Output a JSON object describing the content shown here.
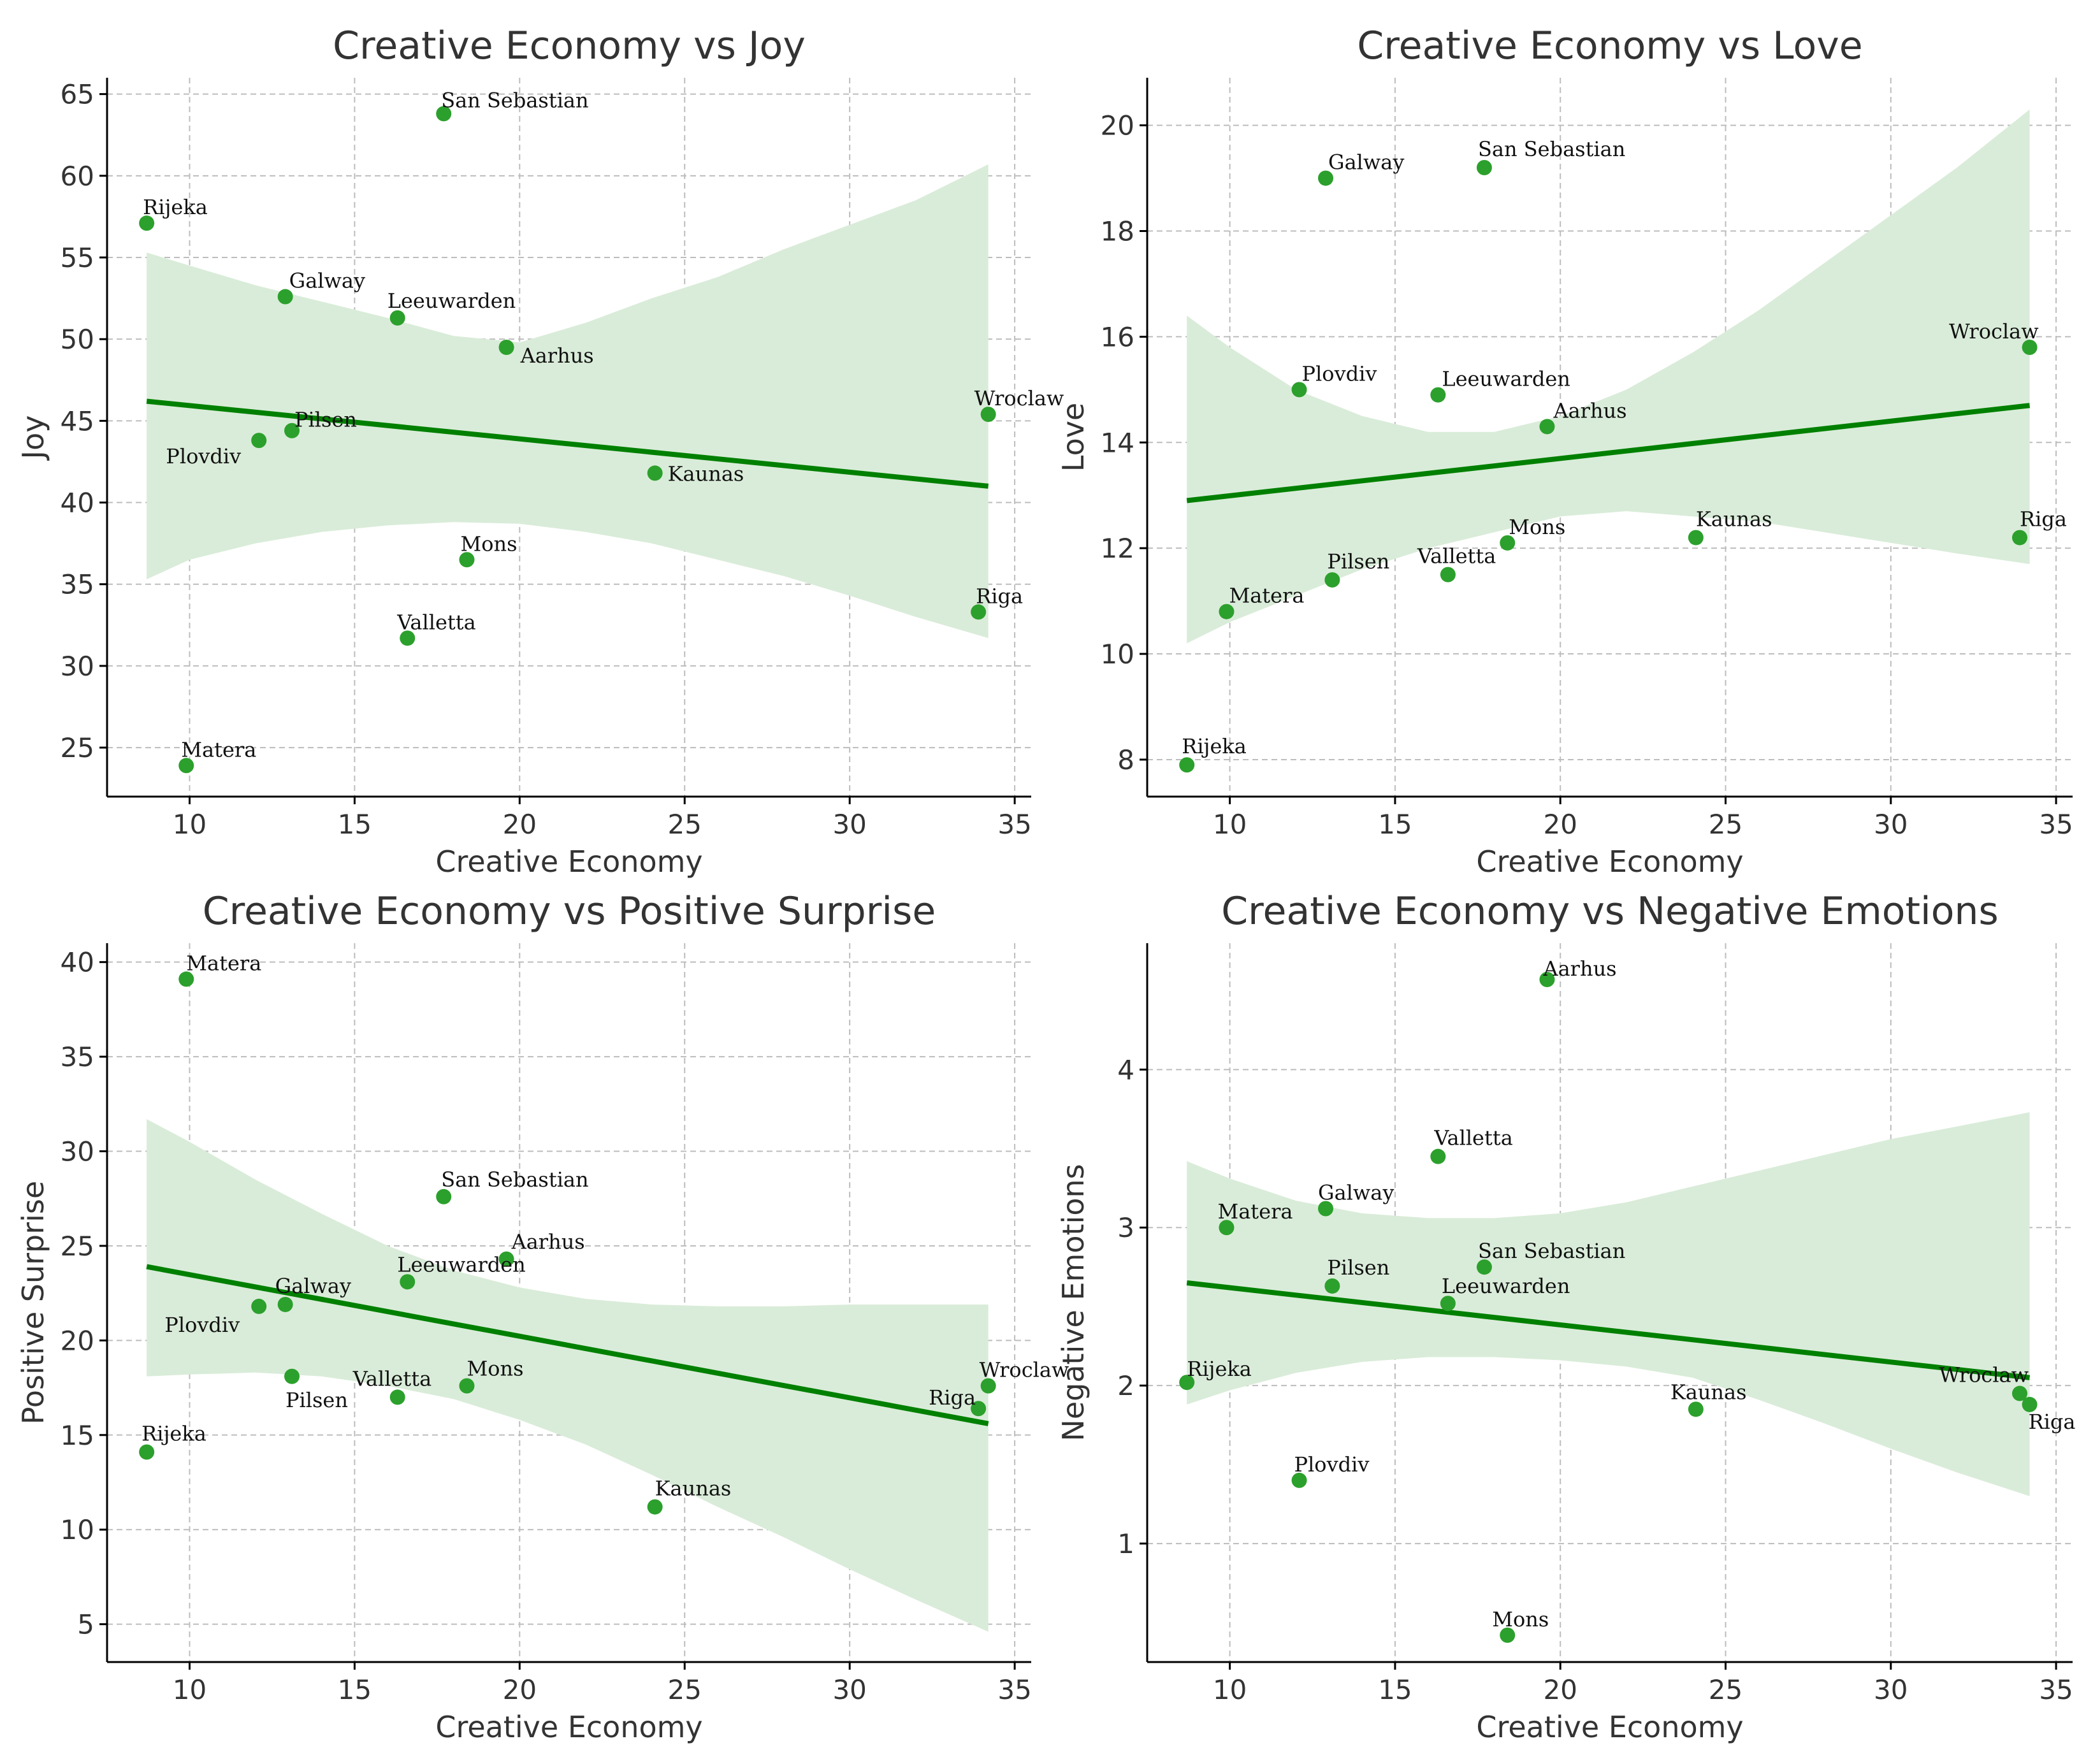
{
  "chart_data": [
    {
      "type": "scatter",
      "title": "Creative Economy vs Joy",
      "xlabel": "Creative Economy",
      "ylabel": "Joy",
      "xlim": [
        7.5,
        35.5
      ],
      "ylim": [
        22,
        66
      ],
      "xticks": [
        10,
        15,
        20,
        25,
        30,
        35
      ],
      "yticks": [
        25,
        30,
        35,
        40,
        45,
        50,
        55,
        60,
        65
      ],
      "grid": true,
      "color": "#2ca02c",
      "line_color": "#008000",
      "band_color": "#d9ecd9",
      "points": [
        {
          "name": "Rijeka",
          "x": 8.7,
          "y": 57.1
        },
        {
          "name": "Matera",
          "x": 9.9,
          "y": 23.9
        },
        {
          "name": "Plovdiv",
          "x": 12.1,
          "y": 43.8
        },
        {
          "name": "Galway",
          "x": 12.9,
          "y": 52.6
        },
        {
          "name": "Pilsen",
          "x": 13.1,
          "y": 44.4
        },
        {
          "name": "Leeuwarden",
          "x": 16.3,
          "y": 51.3
        },
        {
          "name": "Valletta",
          "x": 16.6,
          "y": 31.7
        },
        {
          "name": "San Sebastian",
          "x": 17.7,
          "y": 63.8
        },
        {
          "name": "Mons",
          "x": 18.4,
          "y": 36.5
        },
        {
          "name": "Aarhus",
          "x": 19.6,
          "y": 49.5
        },
        {
          "name": "Kaunas",
          "x": 24.1,
          "y": 41.8
        },
        {
          "name": "Riga",
          "x": 33.9,
          "y": 33.3
        },
        {
          "name": "Wroclaw",
          "x": 34.2,
          "y": 45.4
        }
      ],
      "fit": {
        "x": [
          8.7,
          34.2
        ],
        "y": [
          46.2,
          41.0
        ]
      },
      "ci": {
        "x": [
          8.7,
          10,
          12,
          14,
          16,
          18,
          20,
          22,
          24,
          26,
          28,
          30,
          32,
          34.2
        ],
        "upper": [
          55.3,
          54.5,
          53.3,
          52.3,
          51.3,
          50.2,
          49.8,
          51.0,
          52.5,
          53.8,
          55.5,
          57.0,
          58.5,
          60.7
        ],
        "lower": [
          35.3,
          36.5,
          37.5,
          38.2,
          38.6,
          38.8,
          38.7,
          38.2,
          37.5,
          36.5,
          35.5,
          34.3,
          33.0,
          31.7
        ]
      }
    },
    {
      "type": "scatter",
      "title": "Creative Economy vs Love",
      "xlabel": "Creative Economy",
      "ylabel": "Love",
      "xlim": [
        7.5,
        35.5
      ],
      "ylim": [
        7.3,
        20.9
      ],
      "xticks": [
        10,
        15,
        20,
        25,
        30,
        35
      ],
      "yticks": [
        8,
        10,
        12,
        14,
        16,
        18,
        20
      ],
      "grid": true,
      "color": "#2ca02c",
      "line_color": "#008000",
      "band_color": "#d9ecd9",
      "points": [
        {
          "name": "Rijeka",
          "x": 8.7,
          "y": 7.9
        },
        {
          "name": "Matera",
          "x": 9.9,
          "y": 10.8
        },
        {
          "name": "Plovdiv",
          "x": 12.1,
          "y": 15.0
        },
        {
          "name": "Galway",
          "x": 12.9,
          "y": 19.0
        },
        {
          "name": "Pilsen",
          "x": 13.1,
          "y": 11.4
        },
        {
          "name": "Leeuwarden",
          "x": 16.3,
          "y": 14.9
        },
        {
          "name": "Valletta",
          "x": 16.6,
          "y": 11.5
        },
        {
          "name": "San Sebastian",
          "x": 17.7,
          "y": 19.2
        },
        {
          "name": "Mons",
          "x": 18.4,
          "y": 12.1
        },
        {
          "name": "Aarhus",
          "x": 19.6,
          "y": 14.3
        },
        {
          "name": "Kaunas",
          "x": 24.1,
          "y": 12.2
        },
        {
          "name": "Riga",
          "x": 33.9,
          "y": 12.2
        },
        {
          "name": "Wroclaw",
          "x": 34.2,
          "y": 15.8
        }
      ],
      "fit": {
        "x": [
          8.7,
          34.2
        ],
        "y": [
          12.9,
          14.7
        ]
      },
      "ci": {
        "x": [
          8.7,
          10,
          12,
          14,
          16,
          18,
          20,
          22,
          24,
          26,
          28,
          30,
          32,
          34.2
        ],
        "upper": [
          16.4,
          15.8,
          15.0,
          14.5,
          14.2,
          14.2,
          14.5,
          15.0,
          15.7,
          16.5,
          17.4,
          18.3,
          19.2,
          20.3
        ],
        "lower": [
          10.2,
          10.6,
          11.1,
          11.6,
          12.0,
          12.3,
          12.6,
          12.7,
          12.6,
          12.5,
          12.3,
          12.1,
          11.9,
          11.7
        ]
      }
    },
    {
      "type": "scatter",
      "title": "Creative Economy vs Positive Surprise",
      "xlabel": "Creative Economy",
      "ylabel": "Positive Surprise",
      "xlim": [
        7.5,
        35.5
      ],
      "ylim": [
        3,
        41
      ],
      "xticks": [
        10,
        15,
        20,
        25,
        30,
        35
      ],
      "yticks": [
        5,
        10,
        15,
        20,
        25,
        30,
        35,
        40
      ],
      "grid": true,
      "color": "#2ca02c",
      "line_color": "#008000",
      "band_color": "#d9ecd9",
      "points": [
        {
          "name": "Rijeka",
          "x": 8.7,
          "y": 14.1
        },
        {
          "name": "Matera",
          "x": 9.9,
          "y": 39.1
        },
        {
          "name": "Plovdiv",
          "x": 12.1,
          "y": 21.8
        },
        {
          "name": "Galway",
          "x": 12.9,
          "y": 21.9
        },
        {
          "name": "Pilsen",
          "x": 13.1,
          "y": 18.1
        },
        {
          "name": "Valletta",
          "x": 16.3,
          "y": 17.0
        },
        {
          "name": "Leeuwarden",
          "x": 16.6,
          "y": 23.1
        },
        {
          "name": "San Sebastian",
          "x": 17.7,
          "y": 27.6
        },
        {
          "name": "Mons",
          "x": 18.4,
          "y": 17.6
        },
        {
          "name": "Aarhus",
          "x": 19.6,
          "y": 24.3
        },
        {
          "name": "Kaunas",
          "x": 24.1,
          "y": 11.2
        },
        {
          "name": "Riga",
          "x": 33.9,
          "y": 16.4
        },
        {
          "name": "Wroclaw",
          "x": 34.2,
          "y": 17.6
        }
      ],
      "fit": {
        "x": [
          8.7,
          34.2
        ],
        "y": [
          23.9,
          15.6
        ]
      },
      "ci": {
        "x": [
          8.7,
          10,
          12,
          14,
          16,
          18,
          20,
          22,
          24,
          26,
          28,
          30,
          32,
          34.2
        ],
        "upper": [
          31.7,
          30.5,
          28.5,
          26.7,
          25.0,
          23.7,
          22.8,
          22.2,
          21.9,
          21.8,
          21.8,
          21.9,
          21.9,
          21.9
        ],
        "lower": [
          18.1,
          18.2,
          18.3,
          18.1,
          17.6,
          16.9,
          15.8,
          14.5,
          12.9,
          11.2,
          9.6,
          7.9,
          6.3,
          4.6
        ]
      }
    },
    {
      "type": "scatter",
      "title": "Creative Economy vs Negative Emotions",
      "xlabel": "Creative Economy",
      "ylabel": "Negative Emotions",
      "xlim": [
        7.5,
        35.5
      ],
      "ylim": [
        0.25,
        4.8
      ],
      "xticks": [
        10,
        15,
        20,
        25,
        30,
        35
      ],
      "yticks": [
        1,
        2,
        3,
        4
      ],
      "grid": true,
      "color": "#2ca02c",
      "line_color": "#008000",
      "band_color": "#d9ecd9",
      "points": [
        {
          "name": "Rijeka",
          "x": 8.7,
          "y": 2.02
        },
        {
          "name": "Matera",
          "x": 9.9,
          "y": 3.0
        },
        {
          "name": "Plovdiv",
          "x": 12.1,
          "y": 1.4
        },
        {
          "name": "Galway",
          "x": 12.9,
          "y": 3.12
        },
        {
          "name": "Pilsen",
          "x": 13.1,
          "y": 2.63
        },
        {
          "name": "Valletta",
          "x": 16.3,
          "y": 3.45
        },
        {
          "name": "Leeuwarden",
          "x": 16.6,
          "y": 2.52
        },
        {
          "name": "San Sebastian",
          "x": 17.7,
          "y": 2.75
        },
        {
          "name": "Mons",
          "x": 18.4,
          "y": 0.42
        },
        {
          "name": "Aarhus",
          "x": 19.6,
          "y": 4.57
        },
        {
          "name": "Kaunas",
          "x": 24.1,
          "y": 1.85
        },
        {
          "name": "Wroclaw",
          "x": 33.9,
          "y": 1.95
        },
        {
          "name": "Riga",
          "x": 34.2,
          "y": 1.88
        }
      ],
      "fit": {
        "x": [
          8.7,
          34.2
        ],
        "y": [
          2.65,
          2.05
        ]
      },
      "ci": {
        "x": [
          8.7,
          10,
          12,
          14,
          16,
          18,
          20,
          22,
          24,
          26,
          28,
          30,
          32,
          34.2
        ],
        "upper": [
          3.42,
          3.31,
          3.17,
          3.09,
          3.06,
          3.06,
          3.09,
          3.16,
          3.26,
          3.36,
          3.46,
          3.56,
          3.64,
          3.73
        ],
        "lower": [
          1.88,
          1.97,
          2.08,
          2.15,
          2.18,
          2.18,
          2.16,
          2.12,
          2.05,
          1.91,
          1.76,
          1.6,
          1.45,
          1.3
        ]
      }
    }
  ]
}
